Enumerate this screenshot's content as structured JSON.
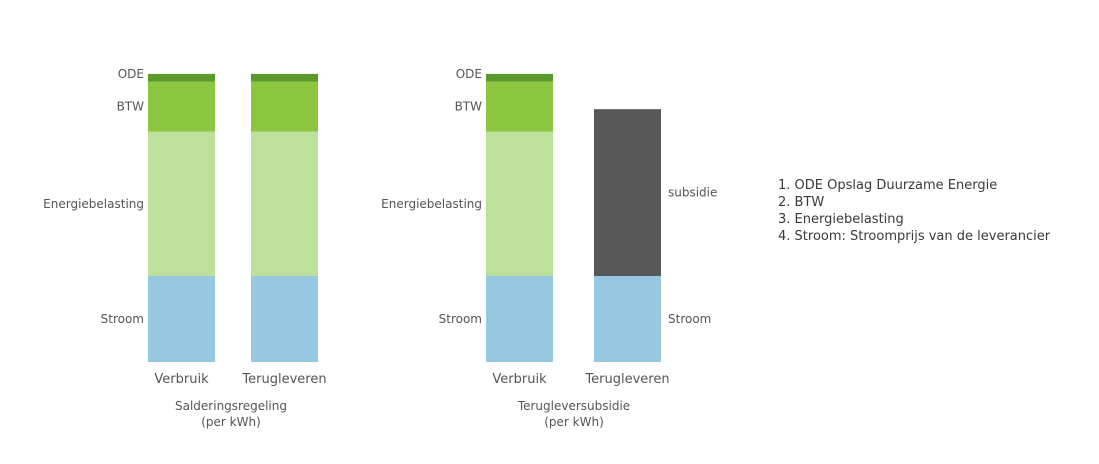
{
  "chart_data": [
    {
      "type": "bar",
      "stacked": true,
      "title": "Salderingsregeling",
      "subtitle": "(per kWh)",
      "categories": [
        "Verbruik",
        "Terugleveren"
      ],
      "series": [
        {
          "name": "Stroom",
          "values": [
            1.0,
            1.0
          ]
        },
        {
          "name": "Energiebelasting",
          "values": [
            1.68,
            1.68
          ]
        },
        {
          "name": "BTW",
          "values": [
            0.58,
            0.58
          ]
        },
        {
          "name": "ODE",
          "values": [
            0.09,
            0.09
          ]
        }
      ],
      "ylim": [
        0,
        3.35
      ],
      "grid": false,
      "segment_labels": [
        {
          "series": "Stroom",
          "text": "Stroom",
          "side": "left"
        },
        {
          "series": "Energiebelasting",
          "text": "Energiebelasting",
          "side": "left"
        },
        {
          "series": "BTW",
          "text": "BTW",
          "side": "left"
        },
        {
          "series": "ODE",
          "text": "ODE",
          "side": "left"
        }
      ]
    },
    {
      "type": "bar",
      "stacked": true,
      "title": "Terugleversubsidie",
      "subtitle": "(per kWh)",
      "categories": [
        "Verbruik",
        "Terugleveren"
      ],
      "series": [
        {
          "name": "Stroom",
          "values": [
            1.0,
            1.0
          ]
        },
        {
          "name": "Energiebelasting",
          "values": [
            1.68,
            0
          ]
        },
        {
          "name": "BTW",
          "values": [
            0.58,
            0
          ]
        },
        {
          "name": "ODE",
          "values": [
            0.09,
            0
          ]
        },
        {
          "name": "subsidie",
          "values": [
            0,
            1.94
          ]
        }
      ],
      "ylim": [
        0,
        3.35
      ],
      "grid": false,
      "segment_labels": [
        {
          "series": "Stroom",
          "text": "Stroom",
          "side": "left",
          "bar": 0
        },
        {
          "series": "Energiebelasting",
          "text": "Energiebelasting",
          "side": "left",
          "bar": 0
        },
        {
          "series": "BTW",
          "text": "BTW",
          "side": "left",
          "bar": 0
        },
        {
          "series": "ODE",
          "text": "ODE",
          "side": "left",
          "bar": 0
        },
        {
          "series": "subsidie",
          "text": "subsidie",
          "side": "right",
          "bar": 1
        },
        {
          "series": "Stroom",
          "text": "Stroom",
          "side": "right",
          "bar": 1
        }
      ]
    }
  ],
  "colors": {
    "Stroom": "#96c8e1",
    "Energiebelasting": "#bde09a",
    "BTW": "#8cc63f",
    "ODE": "#5a9a2a",
    "subsidie": "#575757"
  },
  "legend": {
    "placement": "right",
    "items": [
      "1. ODE Opslag Duurzame Energie",
      "2. BTW",
      "3. Energiebelasting",
      "4. Stroom: Stroomprijs van de leverancier"
    ]
  }
}
